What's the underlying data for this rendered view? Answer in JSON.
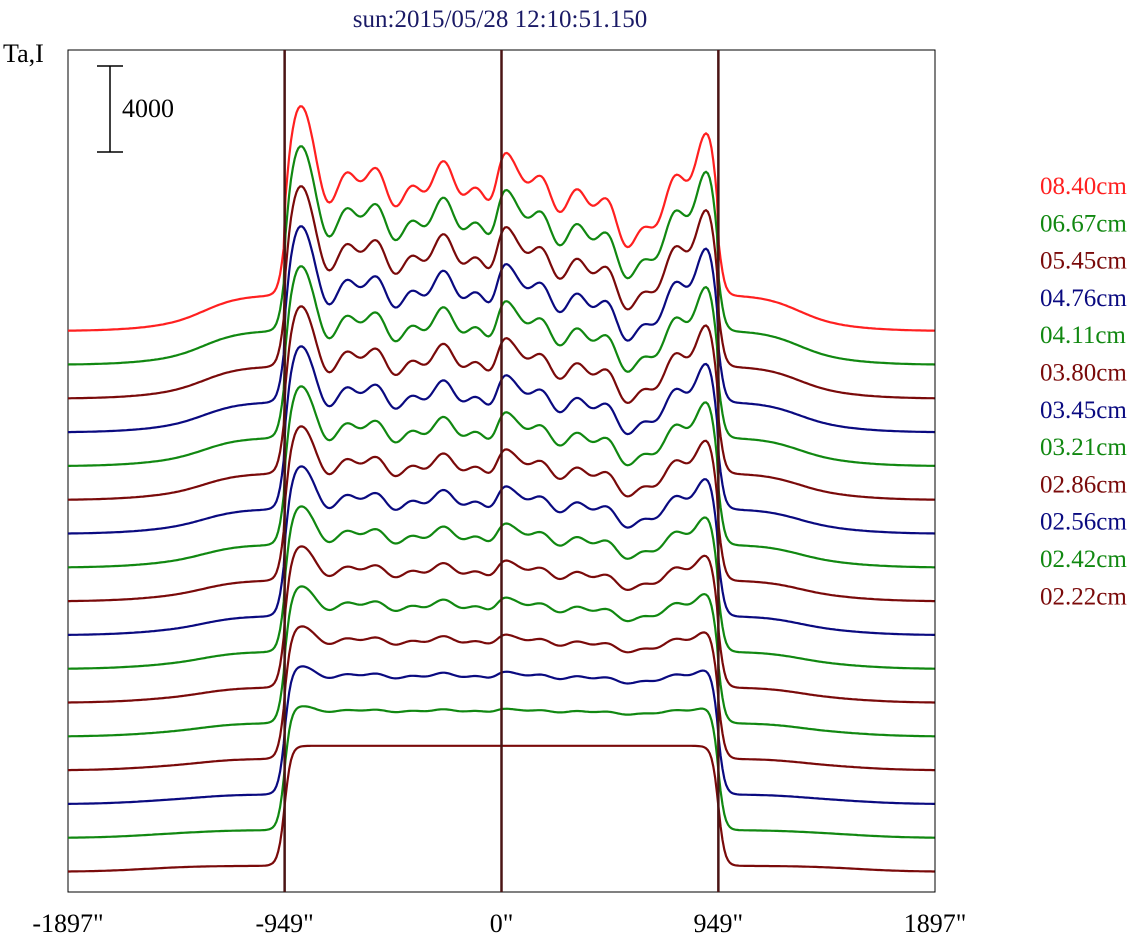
{
  "chart_data": {
    "type": "line",
    "title": "sun:2015/05/28 12:10:51.150",
    "ylabel": "Ta,I",
    "scale_bar_label": "4000",
    "x_range": [
      -1897,
      1897
    ],
    "x_ticks": [
      {
        "value": -1897,
        "label": "-1897\""
      },
      {
        "value": -949,
        "label": "-949\""
      },
      {
        "value": 0,
        "label": "0\""
      },
      {
        "value": 949,
        "label": "949\""
      },
      {
        "value": 1897,
        "label": "1897\""
      }
    ],
    "vertical_markers": [
      -949,
      0,
      949
    ],
    "grid": false,
    "legend_position": "right",
    "series": [
      {
        "name": "08.40cm",
        "color": "#ff2020"
      },
      {
        "name": "06.67cm",
        "color": "#118811"
      },
      {
        "name": "05.45cm",
        "color": "#7a0a0a"
      },
      {
        "name": "04.76cm",
        "color": "#0a0a80"
      },
      {
        "name": "04.11cm",
        "color": "#118811"
      },
      {
        "name": "03.80cm",
        "color": "#7a0a0a"
      },
      {
        "name": "03.45cm",
        "color": "#0a0a80"
      },
      {
        "name": "03.21cm",
        "color": "#118811"
      },
      {
        "name": "02.86cm",
        "color": "#7a0a0a"
      },
      {
        "name": "02.56cm",
        "color": "#0a0a80"
      },
      {
        "name": "02.42cm",
        "color": "#118811"
      },
      {
        "name": "02.22cm",
        "color": "#7a0a0a"
      }
    ],
    "extra_curves": [
      {
        "color": "#118811"
      },
      {
        "color": "#7a0a0a"
      },
      {
        "color": "#0a0a80"
      },
      {
        "color": "#118811"
      },
      {
        "color": "#7a0a0a"
      }
    ]
  }
}
